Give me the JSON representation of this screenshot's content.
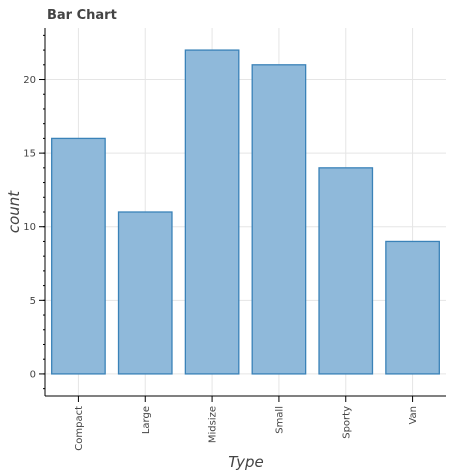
{
  "chart_data": {
    "type": "bar",
    "title": "Bar Chart",
    "xlabel": "Type",
    "ylabel": "count",
    "categories": [
      "Compact",
      "Large",
      "Midsize",
      "Small",
      "Sporty",
      "Van"
    ],
    "values": [
      16,
      11,
      22,
      21,
      14,
      9
    ],
    "ylim": [
      -1.5,
      23.5
    ],
    "yticks": [
      0,
      5,
      10,
      15,
      20
    ],
    "grid": true,
    "colors": {
      "bar_fill": "#8fb9da",
      "bar_stroke": "#3a82b8"
    }
  }
}
